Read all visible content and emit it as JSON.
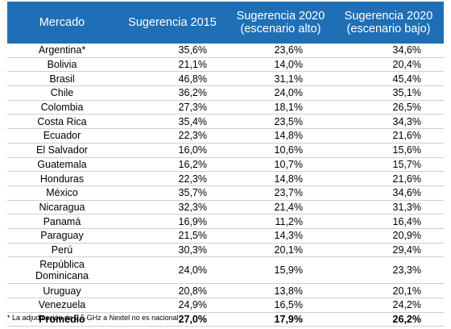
{
  "table": {
    "headers": {
      "market": "Mercado",
      "s2015": "Sugerencia 2015",
      "s2020_high_l1": "Sugerencia 2020",
      "s2020_high_l2": "(escenario alto)",
      "s2020_low_l1": "Sugerencia 2020",
      "s2020_low_l2": "(escenario bajo)"
    },
    "rows": [
      {
        "market": "Argentina*",
        "s2015": "35,6%",
        "s2020_high": "23,6%",
        "s2020_low": "34,6%"
      },
      {
        "market": "Bolivia",
        "s2015": "21,1%",
        "s2020_high": "14,0%",
        "s2020_low": "20,4%"
      },
      {
        "market": "Brasil",
        "s2015": "46,8%",
        "s2020_high": "31,1%",
        "s2020_low": "45,4%"
      },
      {
        "market": "Chile",
        "s2015": "36,2%",
        "s2020_high": "24,0%",
        "s2020_low": "35,1%"
      },
      {
        "market": "Colombia",
        "s2015": "27,3%",
        "s2020_high": "18,1%",
        "s2020_low": "26,5%"
      },
      {
        "market": "Costa Rica",
        "s2015": "35,4%",
        "s2020_high": "23,5%",
        "s2020_low": "34,3%"
      },
      {
        "market": "Ecuador",
        "s2015": "22,3%",
        "s2020_high": "14,8%",
        "s2020_low": "21,6%"
      },
      {
        "market": "El Salvador",
        "s2015": "16,0%",
        "s2020_high": "10,6%",
        "s2020_low": "15,6%"
      },
      {
        "market": "Guatemala",
        "s2015": "16,2%",
        "s2020_high": "10,7%",
        "s2020_low": "15,7%"
      },
      {
        "market": "Honduras",
        "s2015": "22,3%",
        "s2020_high": "14,8%",
        "s2020_low": "21,6%"
      },
      {
        "market": "México",
        "s2015": "35,7%",
        "s2020_high": "23,7%",
        "s2020_low": "34,6%"
      },
      {
        "market": "Nicaragua",
        "s2015": "32,3%",
        "s2020_high": "21,4%",
        "s2020_low": "31,3%"
      },
      {
        "market": "Panamá",
        "s2015": "16,9%",
        "s2020_high": "11,2%",
        "s2020_low": "16,4%"
      },
      {
        "market": "Paraguay",
        "s2015": "21,5%",
        "s2020_high": "14,3%",
        "s2020_low": "20,9%"
      },
      {
        "market": "Perú",
        "s2015": "30,3%",
        "s2020_high": "20,1%",
        "s2020_low": "29,4%"
      },
      {
        "market_l1": "República",
        "market_l2": "Dominicana",
        "s2015": "24,0%",
        "s2020_high": "15,9%",
        "s2020_low": "23,3%"
      },
      {
        "market": "Uruguay",
        "s2015": "20,8%",
        "s2020_high": "13,8%",
        "s2020_low": "20,1%"
      },
      {
        "market": "Venezuela",
        "s2015": "24,9%",
        "s2020_high": "16,5%",
        "s2020_low": "24,2%"
      }
    ],
    "total": {
      "market": "Promedio",
      "s2015": "27,0%",
      "s2020_high": "17,9%",
      "s2020_low": "26,2%"
    }
  },
  "footnote": "* La adjudicación de 2,5 GHz a Nextel no es nacional"
}
